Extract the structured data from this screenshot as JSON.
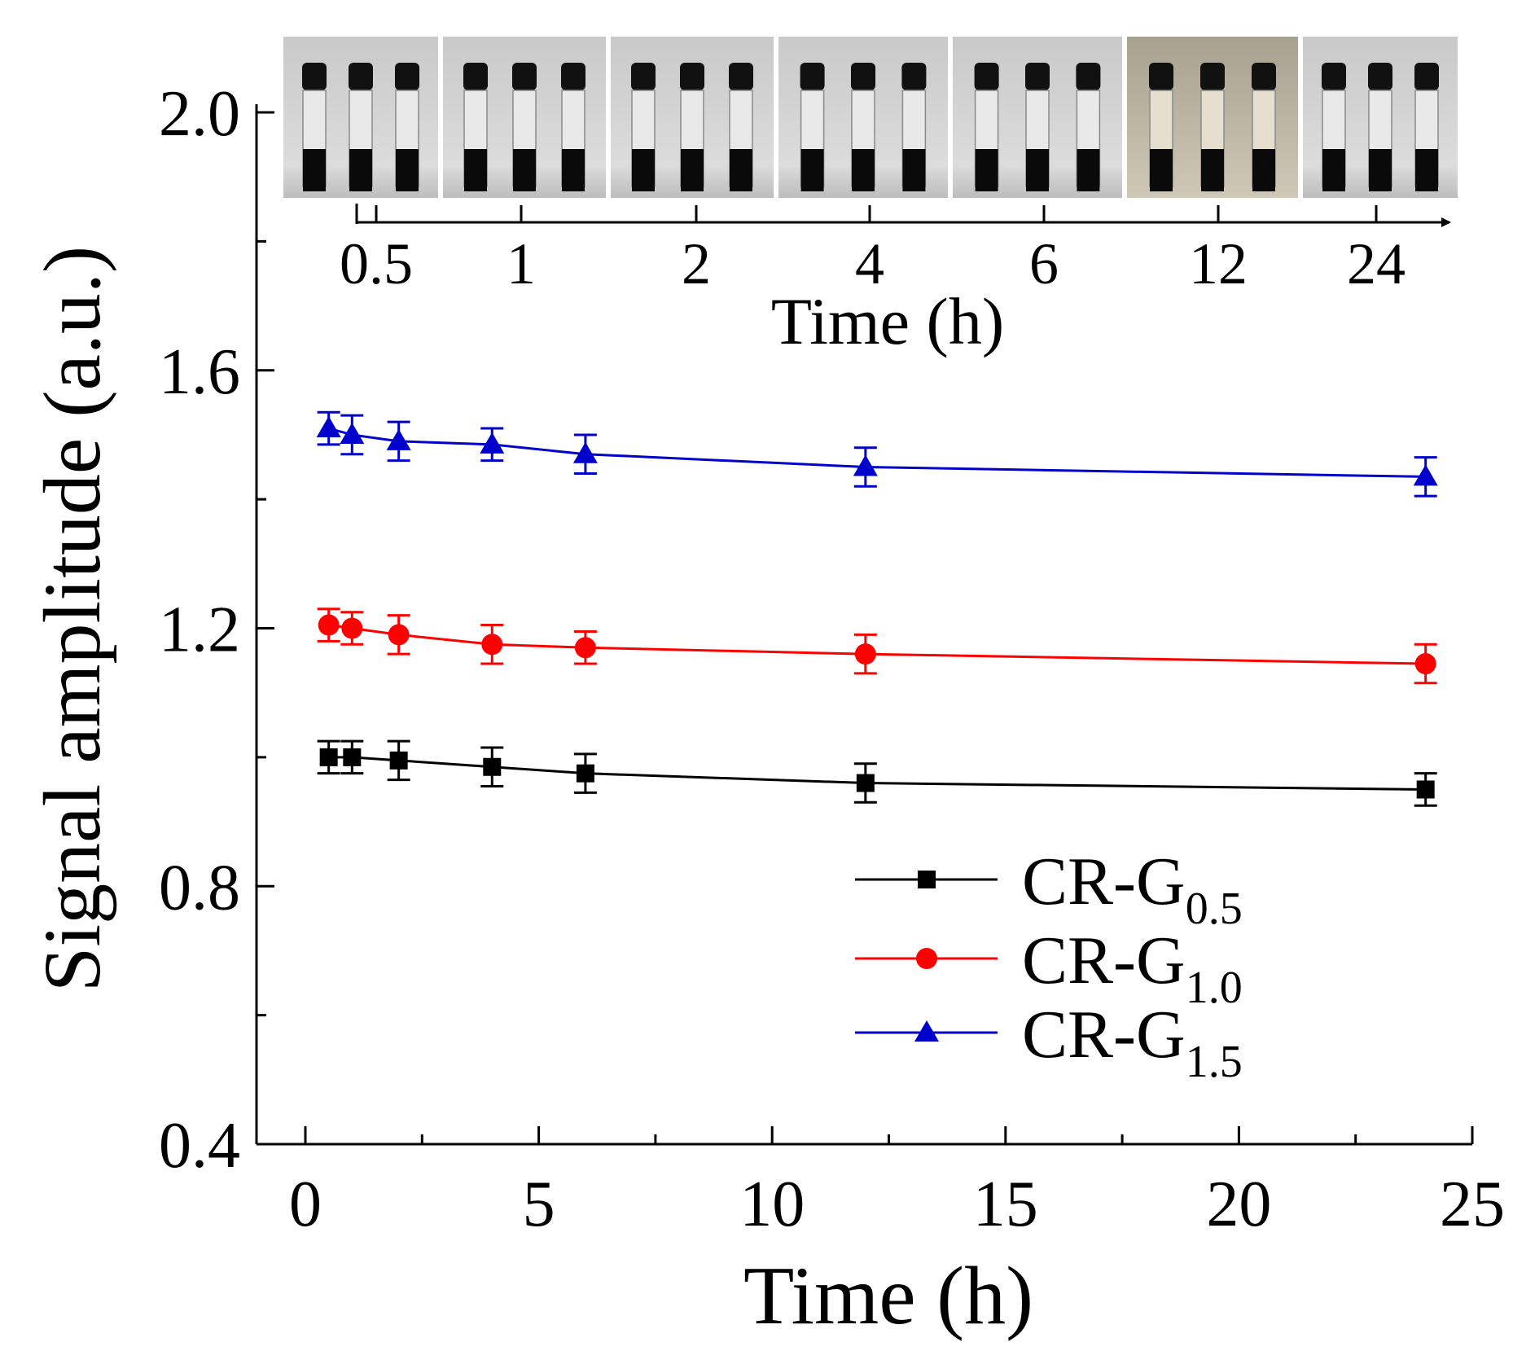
{
  "chart_data": {
    "type": "line",
    "xlabel": "Time (h)",
    "ylabel": "Signal amplitude (a.u.)",
    "xlim": [
      0,
      25
    ],
    "ylim": [
      0.4,
      2.0
    ],
    "x_ticks": [
      0,
      5,
      10,
      15,
      20,
      25
    ],
    "x_tick_labels": [
      "0",
      "5",
      "10",
      "15",
      "20",
      "25"
    ],
    "y_ticks": [
      0.4,
      0.8,
      1.2,
      1.6,
      2.0
    ],
    "y_tick_labels": [
      "0.4",
      "0.8",
      "1.2",
      "1.6",
      "2.0"
    ],
    "x": [
      0.5,
      1,
      2,
      4,
      6,
      12,
      24
    ],
    "series": [
      {
        "name": "CR-G0.5",
        "label_main": "CR-G",
        "label_sub": "0.5",
        "color": "#000000",
        "marker": "square",
        "values": [
          1.0,
          1.0,
          0.995,
          0.985,
          0.975,
          0.96,
          0.95
        ],
        "errors": [
          0.025,
          0.025,
          0.03,
          0.03,
          0.03,
          0.03,
          0.025
        ]
      },
      {
        "name": "CR-G1.0",
        "label_main": "CR-G",
        "label_sub": "1.0",
        "color": "#ff0000",
        "marker": "circle",
        "values": [
          1.205,
          1.2,
          1.19,
          1.175,
          1.17,
          1.16,
          1.145
        ],
        "errors": [
          0.025,
          0.025,
          0.03,
          0.03,
          0.025,
          0.03,
          0.03
        ]
      },
      {
        "name": "CR-G1.5",
        "label_main": "CR-G",
        "label_sub": "1.5",
        "color": "#0000cc",
        "marker": "triangle",
        "values": [
          1.51,
          1.5,
          1.49,
          1.485,
          1.47,
          1.45,
          1.435
        ],
        "errors": [
          0.025,
          0.03,
          0.03,
          0.025,
          0.03,
          0.03,
          0.03
        ]
      }
    ],
    "legend_location": "bottom-right",
    "inset": {
      "description_type": "photo-strip",
      "axis_label": "Time (h)",
      "tick_labels": [
        "0.5",
        "1",
        "2",
        "4",
        "6",
        "12",
        "24"
      ]
    }
  }
}
